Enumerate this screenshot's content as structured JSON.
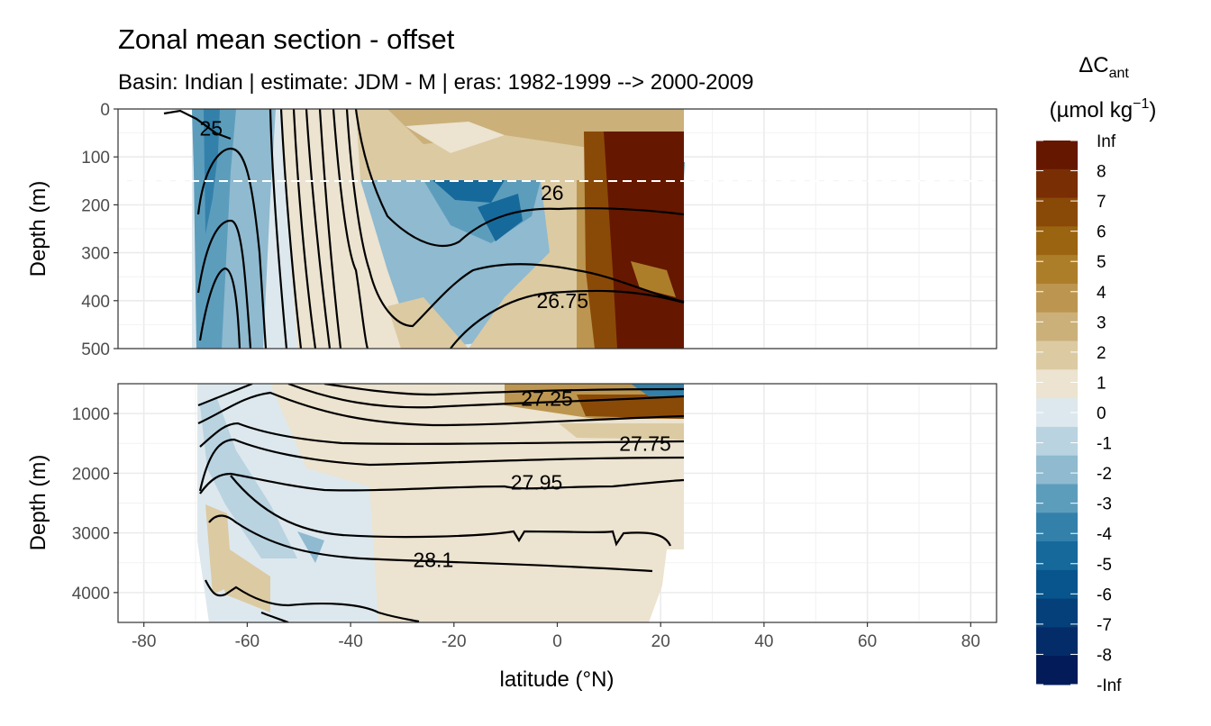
{
  "chart_data": {
    "type": "heatmap",
    "title": "Zonal mean section - offset",
    "subtitle": "Basin: Indian | estimate: JDM - M | eras: 1982-1999 --> 2000-2009",
    "xlabel": "latitude (°N)",
    "x_ticks": [
      "-80",
      "-60",
      "-40",
      "-20",
      "0",
      "20",
      "40",
      "60",
      "80"
    ],
    "x_tick_values": [
      -80,
      -60,
      -40,
      -20,
      0,
      20,
      40,
      60,
      80
    ],
    "xlim": [
      -85,
      85
    ],
    "panels": [
      {
        "name": "upper",
        "ylabel": "Depth (m)",
        "ylim": [
          500,
          0
        ],
        "y_ticks": [
          "0",
          "100",
          "200",
          "300",
          "400",
          "500"
        ],
        "y_tick_values": [
          0,
          100,
          200,
          300,
          400,
          500
        ],
        "dashed_line_depth": 150,
        "isopycnal_labels": [
          {
            "text": "25",
            "lat": -67,
            "depth": 40
          },
          {
            "text": "26",
            "lat": -1,
            "depth": 175
          },
          {
            "text": "26.75",
            "lat": 1,
            "depth": 400
          }
        ]
      },
      {
        "name": "lower",
        "ylabel": "Depth (m)",
        "ylim": [
          4500,
          500
        ],
        "y_ticks": [
          "1000",
          "2000",
          "3000",
          "4000"
        ],
        "y_tick_values": [
          1000,
          2000,
          3000,
          4000
        ],
        "isopycnal_labels": [
          {
            "text": "27.25",
            "lat": -2,
            "depth": 750
          },
          {
            "text": "27.75",
            "lat": 17,
            "depth": 1500
          },
          {
            "text": "27.95",
            "lat": -4,
            "depth": 2150
          },
          {
            "text": "28.1",
            "lat": -24,
            "depth": 3450
          }
        ]
      }
    ],
    "legend": {
      "title_main": "ΔC",
      "title_sub": "ant",
      "unit_main": "(µmol kg",
      "unit_sup": "−1",
      "unit_close": ")",
      "labels": [
        "Inf",
        "8",
        "7",
        "6",
        "5",
        "4",
        "3",
        "2",
        "1",
        "0",
        "-1",
        "-2",
        "-3",
        "-4",
        "-5",
        "-6",
        "-7",
        "-8",
        "-Inf"
      ],
      "colors": [
        "#661700",
        "#7a2e04",
        "#8a4a07",
        "#9b6410",
        "#ad7e2a",
        "#bc9650",
        "#cbb07a",
        "#dccaa2",
        "#ece3d0",
        "#dde8ee",
        "#b9d3e0",
        "#8fbad0",
        "#5d9dbc",
        "#3381ab",
        "#16699b",
        "#07558c",
        "#05407a",
        "#042c68",
        "#031b59"
      ],
      "placement": "right"
    }
  }
}
